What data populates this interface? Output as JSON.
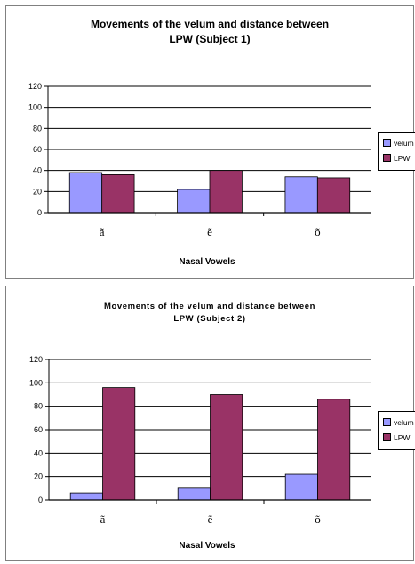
{
  "chart_data": [
    {
      "type": "bar",
      "title_lines": [
        "Movements of the velum and distance between",
        "LPW (Subject 1)"
      ],
      "xlabel": "Nasal Vowels",
      "ylabel": "",
      "categories": [
        "ã",
        "ẽ",
        "õ"
      ],
      "ylim": [
        0,
        120
      ],
      "yticks": [
        0,
        20,
        40,
        60,
        80,
        100,
        120
      ],
      "grid": true,
      "legend": "right",
      "series": [
        {
          "name": "velum",
          "color": "#9999ff",
          "values": [
            38,
            22,
            34
          ]
        },
        {
          "name": "LPW",
          "color": "#993366",
          "values": [
            36,
            40,
            33
          ]
        }
      ]
    },
    {
      "type": "bar",
      "title_lines": [
        "Movements of the velum and distance between",
        "LPW (Subject 2)"
      ],
      "xlabel": "Nasal Vowels",
      "ylabel": "",
      "categories": [
        "ã",
        "ẽ",
        "õ"
      ],
      "ylim": [
        0,
        120
      ],
      "yticks": [
        0,
        20,
        40,
        60,
        80,
        100,
        120
      ],
      "grid": true,
      "legend": "right",
      "series": [
        {
          "name": "velum",
          "color": "#9999ff",
          "values": [
            6,
            10,
            22
          ]
        },
        {
          "name": "LPW",
          "color": "#993366",
          "values": [
            96,
            90,
            86
          ]
        }
      ]
    }
  ]
}
